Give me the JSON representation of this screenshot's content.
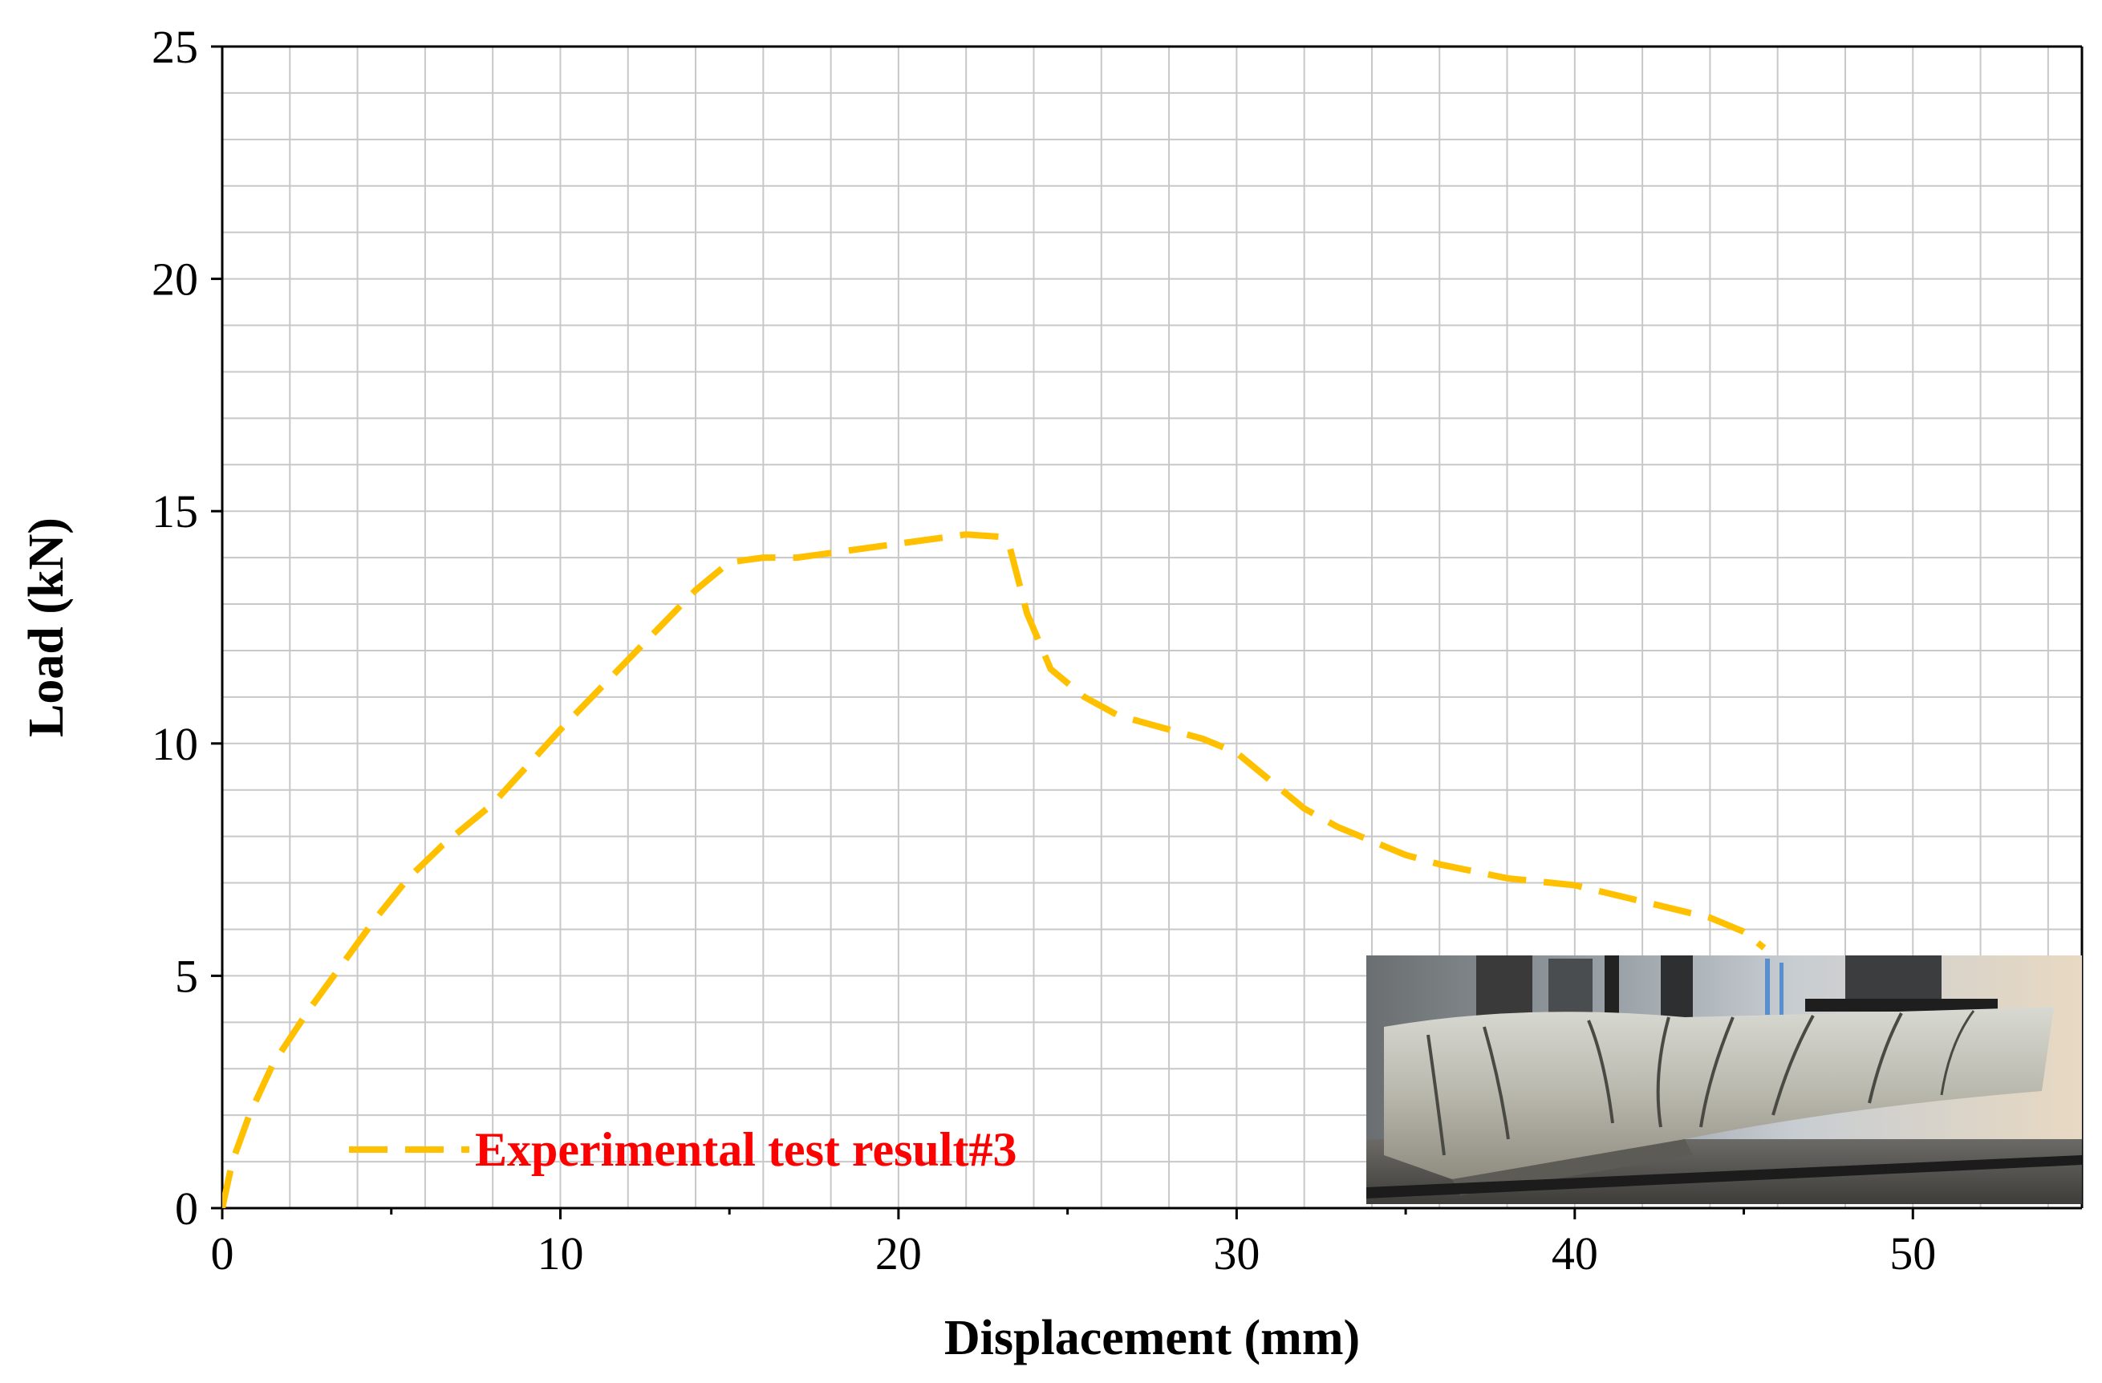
{
  "chart_data": {
    "type": "line",
    "xlabel": "Displacement (mm)",
    "ylabel": "Load (kN)",
    "xlim": [
      0,
      55
    ],
    "ylim": [
      0,
      25
    ],
    "x_ticks": [
      0,
      10,
      20,
      30,
      40,
      50
    ],
    "y_ticks": [
      0,
      5,
      10,
      15,
      20,
      25
    ],
    "grid": true,
    "legend_position": "bottom-left",
    "series": [
      {
        "name": "Experimental test result#3",
        "color": "#FFC000",
        "line_style": "dashed",
        "x": [
          0,
          0.3,
          0.8,
          1.5,
          2.5,
          3.5,
          4.5,
          5.5,
          6.5,
          8,
          10,
          12,
          14,
          15,
          16,
          17,
          18,
          20,
          21,
          22,
          23,
          23.3,
          23.8,
          24.5,
          25.5,
          26.5,
          27.5,
          29,
          30,
          31,
          32,
          33,
          34,
          35,
          36,
          37,
          38,
          40,
          42,
          44,
          45,
          45.6
        ],
        "y": [
          0,
          1.0,
          2.0,
          3.1,
          4.2,
          5.2,
          6.2,
          7.1,
          7.8,
          8.7,
          10.3,
          11.8,
          13.3,
          13.9,
          14.0,
          14.0,
          14.1,
          14.3,
          14.4,
          14.5,
          14.45,
          14.2,
          12.8,
          11.6,
          11.0,
          10.6,
          10.4,
          10.1,
          9.8,
          9.2,
          8.6,
          8.2,
          7.9,
          7.6,
          7.4,
          7.25,
          7.1,
          6.95,
          6.6,
          6.25,
          5.95,
          5.6
        ]
      }
    ]
  },
  "inset_photo": {
    "icon": "cracked-beam-photo-icon"
  }
}
